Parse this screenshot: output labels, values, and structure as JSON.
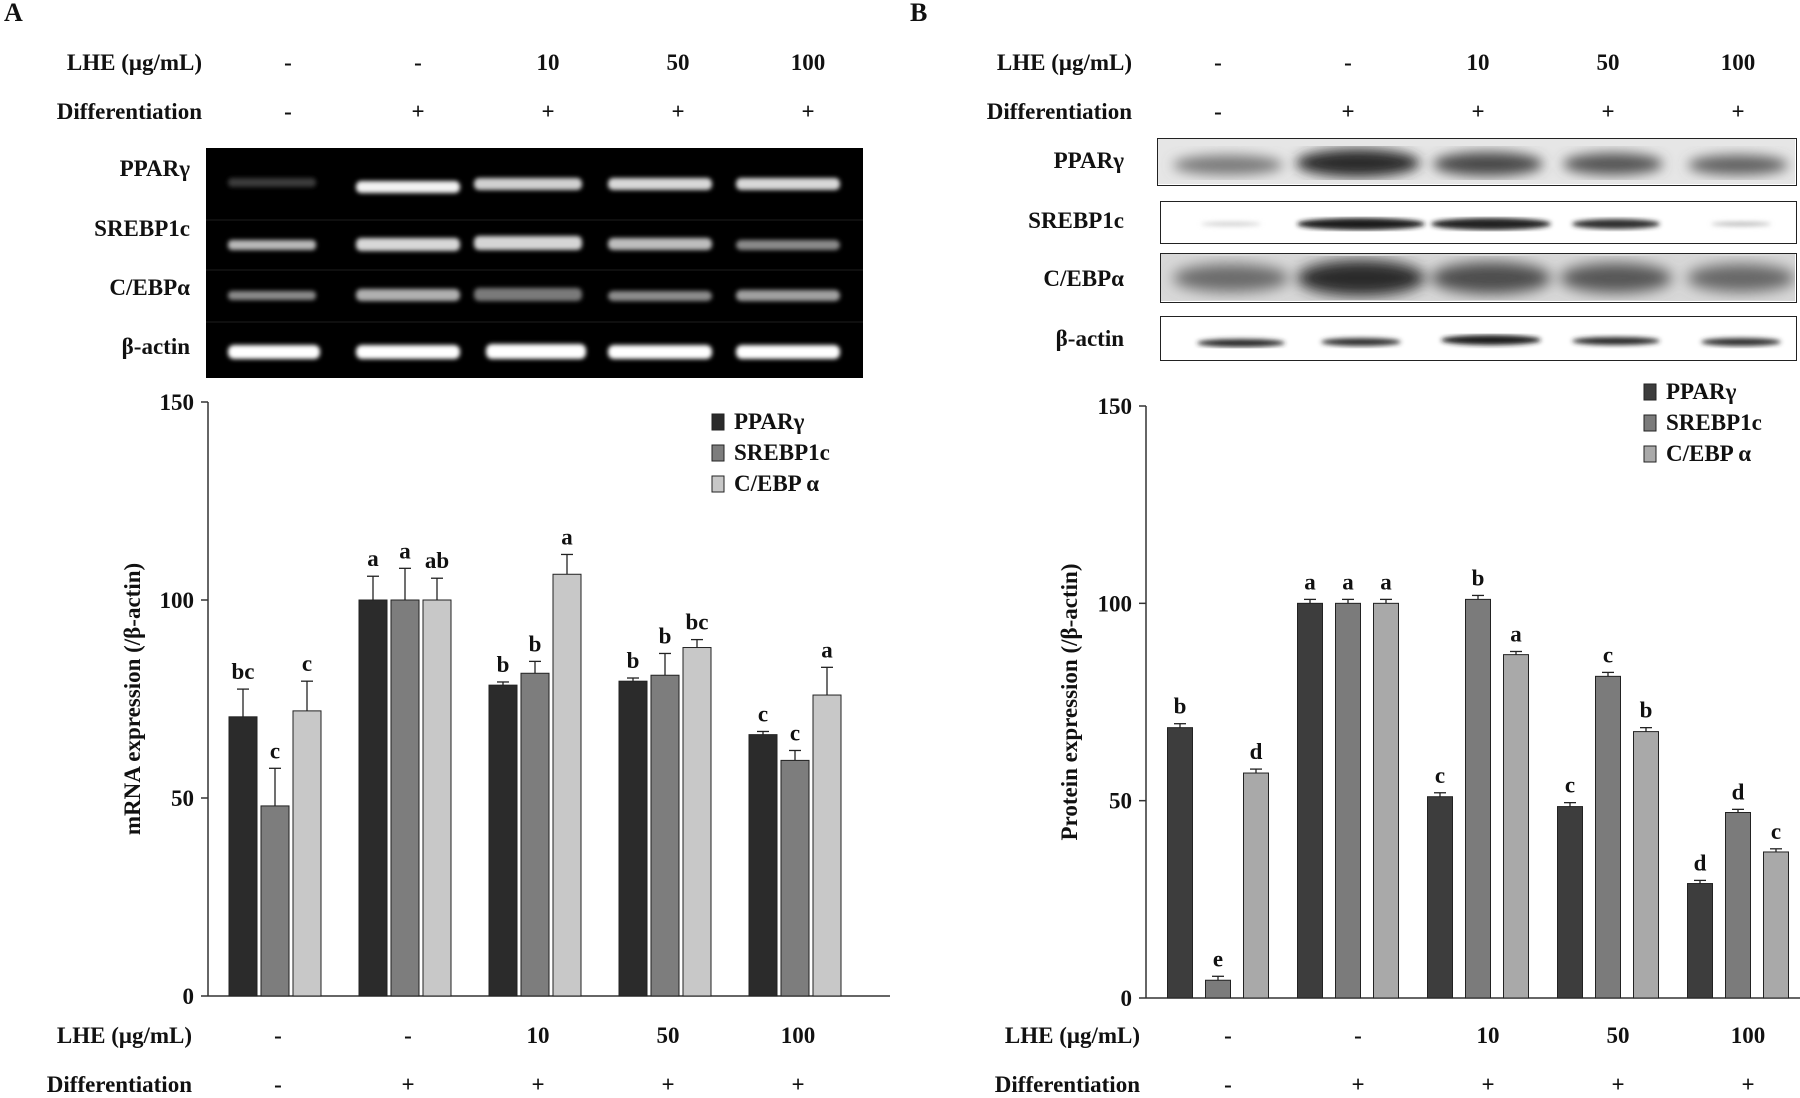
{
  "panel_a": {
    "letter": "A",
    "lhe_label": "LHE (μg/mL)",
    "diff_label": "Differentiation",
    "lhe_values": [
      "-",
      "-",
      "10",
      "50",
      "100"
    ],
    "diff_values": [
      "-",
      "+",
      "+",
      "+",
      "+"
    ],
    "bands": [
      "PPARγ",
      "SREBP1c",
      "C/EBPα",
      "β-actin"
    ]
  },
  "panel_b": {
    "letter": "B",
    "lhe_label": "LHE (μg/mL)",
    "diff_label": "Differentiation",
    "lhe_values": [
      "-",
      "-",
      "10",
      "50",
      "100"
    ],
    "diff_values": [
      "-",
      "+",
      "+",
      "+",
      "+"
    ],
    "bands": [
      "PPARγ",
      "SREBP1c",
      "C/EBPα",
      "β-actin"
    ]
  },
  "chart_data": [
    {
      "type": "bar",
      "panel": "A",
      "ylabel": "mRNA expression (/β-actin)",
      "ylim": [
        0,
        150
      ],
      "yticks": [
        0,
        50,
        100,
        150
      ],
      "legend_position": "top-right",
      "groups": 5,
      "x_lhe": [
        "-",
        "-",
        "10",
        "50",
        "100"
      ],
      "x_differentiation": [
        "-",
        "+",
        "+",
        "+",
        "+"
      ],
      "series": [
        {
          "name": "PPARγ",
          "color": "#2b2b2b",
          "values": [
            70.5,
            100,
            78.5,
            79.5,
            66
          ],
          "errors": [
            7,
            6,
            0.8,
            0.8,
            0.8
          ],
          "letters": [
            "bc",
            "a",
            "b",
            "b",
            "c"
          ]
        },
        {
          "name": "SREBP1c",
          "color": "#7d7d7d",
          "values": [
            48,
            100,
            81.5,
            81,
            59.5
          ],
          "errors": [
            9.5,
            8,
            3,
            5.5,
            2.5
          ],
          "letters": [
            "c",
            "a",
            "b",
            "b",
            "c"
          ]
        },
        {
          "name": "C/EBP α",
          "color": "#c8c8c8",
          "values": [
            72,
            100,
            106.5,
            88,
            76
          ],
          "errors": [
            7.5,
            5.5,
            5,
            2,
            7
          ],
          "letters": [
            "c",
            "ab",
            "a",
            "bc",
            "a"
          ]
        }
      ]
    },
    {
      "type": "bar",
      "panel": "B",
      "ylabel": "Protein expression (/β-actin)",
      "ylim": [
        0,
        150
      ],
      "yticks": [
        0,
        50,
        100,
        150
      ],
      "legend_position": "top-right",
      "groups": 5,
      "x_lhe": [
        "-",
        "-",
        "10",
        "50",
        "100"
      ],
      "x_differentiation": [
        "-",
        "+",
        "+",
        "+",
        "+"
      ],
      "series": [
        {
          "name": "PPARγ",
          "color": "#3d3d3d",
          "values": [
            68.5,
            100,
            51,
            48.5,
            29
          ],
          "errors": [
            1,
            1,
            1,
            1,
            0.8
          ],
          "letters": [
            "b",
            "a",
            "c",
            "c",
            "d"
          ]
        },
        {
          "name": "SREBP1c",
          "color": "#7b7b7b",
          "values": [
            4.5,
            100,
            101,
            81.5,
            47
          ],
          "errors": [
            1,
            1,
            1,
            1,
            0.8
          ],
          "letters": [
            "e",
            "a",
            "b",
            "c",
            "d"
          ]
        },
        {
          "name": "C/EBP α",
          "color": "#a9a9a9",
          "values": [
            57,
            100,
            87,
            67.5,
            37
          ],
          "errors": [
            1,
            1,
            0.8,
            1,
            0.8
          ],
          "letters": [
            "d",
            "a",
            "a",
            "b",
            "c"
          ]
        }
      ]
    }
  ]
}
